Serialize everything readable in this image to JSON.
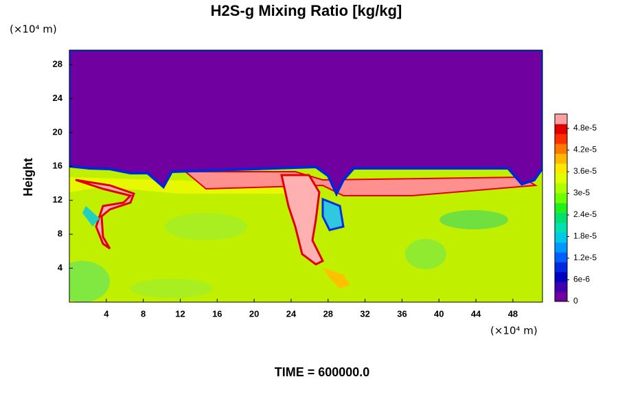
{
  "chart_data": {
    "type": "contour",
    "title": "H2S-g Mixing Ratio [kg/kg]",
    "ylabel": "Height",
    "x_unit": "(×10⁴ m)",
    "y_unit": "(×10⁴ m)",
    "footer": "TIME = 600000.0",
    "xlim": [
      0,
      51.2
    ],
    "xticks": [
      4,
      8,
      12,
      16,
      20,
      24,
      28,
      32,
      36,
      40,
      44,
      48
    ],
    "ylim": [
      0,
      29.7
    ],
    "yticks": [
      4,
      8,
      12,
      16,
      20,
      24,
      28
    ],
    "colorbar": {
      "clim": [
        0,
        5.2e-05
      ],
      "ticks": [
        0,
        {
          "value": 6e-06,
          "label": "6e-6"
        },
        {
          "value": 1.2e-05,
          "label": "1.2e-5"
        },
        {
          "value": 1.8e-05,
          "label": "1.8e-5"
        },
        {
          "value": 2.4e-05,
          "label": "2.4e-5"
        },
        {
          "value": 3e-05,
          "label": "3e-5"
        },
        {
          "value": 3.6e-05,
          "label": "3.6e-5"
        },
        {
          "value": 4.2e-05,
          "label": "4.2e-5"
        },
        {
          "value": 4.8e-05,
          "label": "4.8e-5"
        }
      ],
      "colors": [
        "#7000a0",
        "#4000b0",
        "#0000c0",
        "#0028e0",
        "#0060ff",
        "#0098ff",
        "#00c8e8",
        "#00e0b0",
        "#00e070",
        "#20f020",
        "#70ff00",
        "#b0ff00",
        "#e0ff00",
        "#ffe800",
        "#ffb800",
        "#ff7800",
        "#ff3000",
        "#e00000",
        "#ffa0a0"
      ]
    }
  }
}
